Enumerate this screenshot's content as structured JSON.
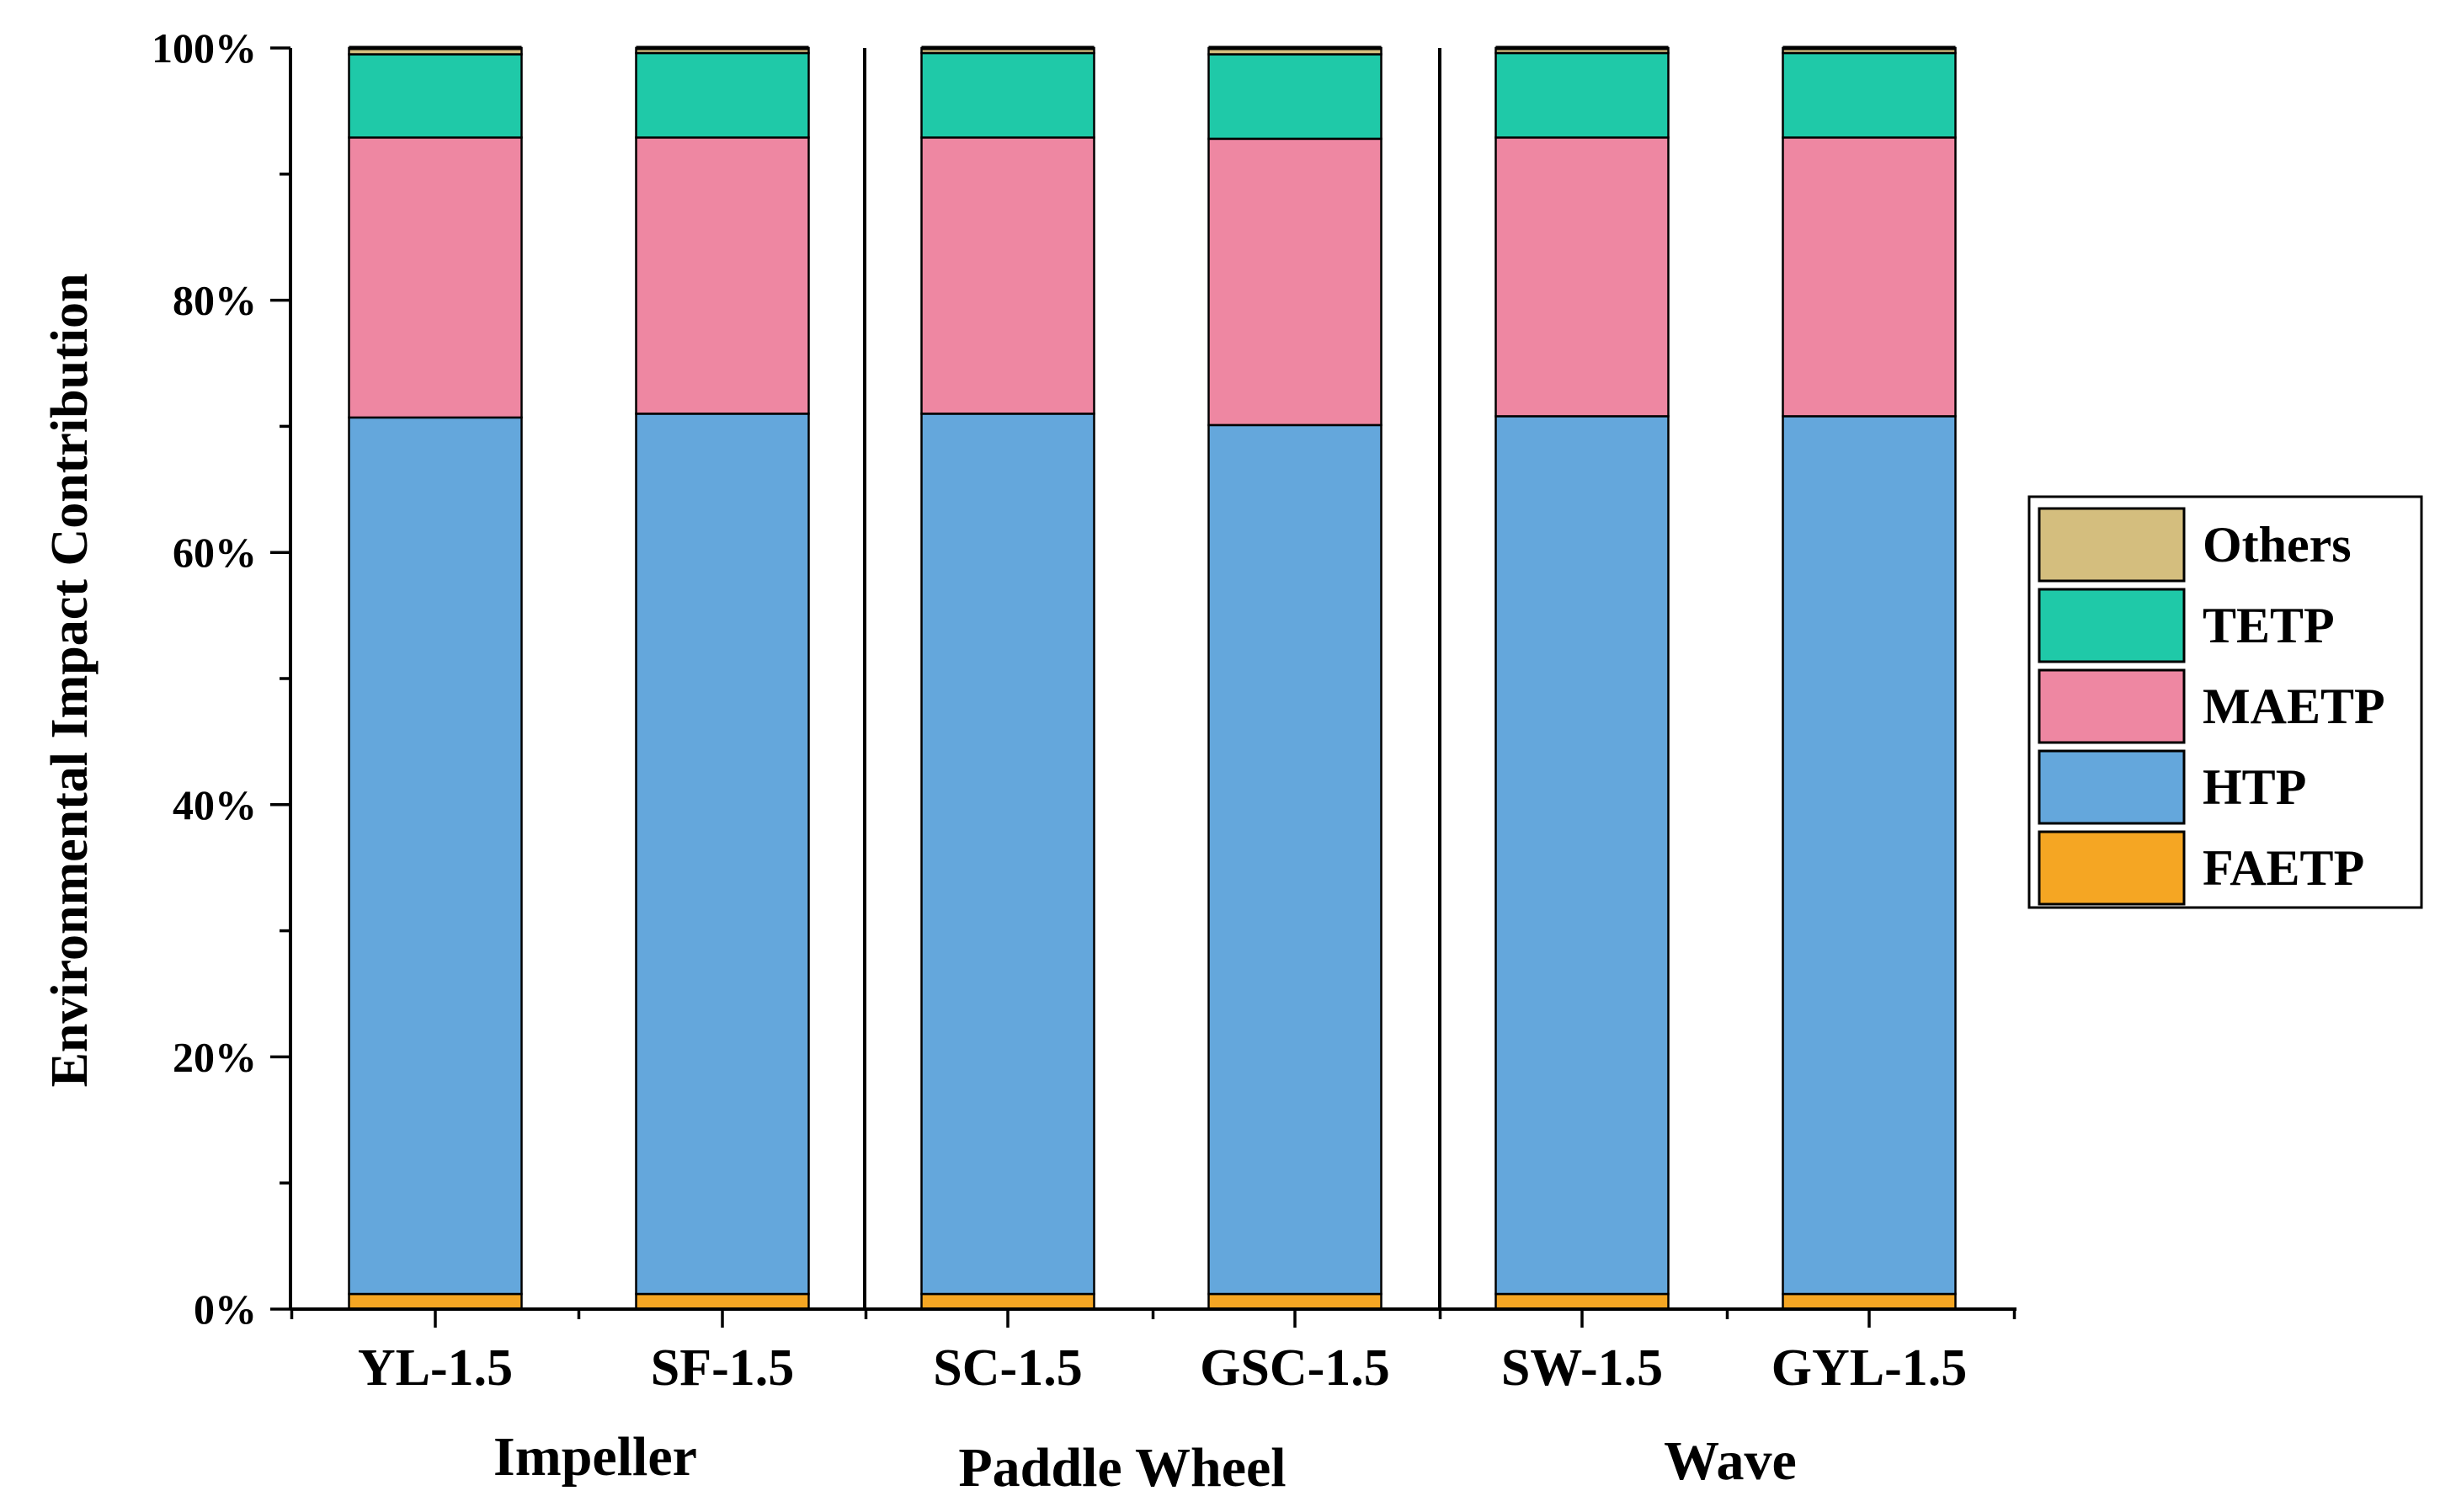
{
  "chart_data": {
    "type": "bar",
    "stacked": true,
    "percent": true,
    "ylabel": "Environmental Impact Contribution",
    "ylim": [
      0,
      100
    ],
    "yticks": [
      "0%",
      "20%",
      "40%",
      "60%",
      "80%",
      "100%"
    ],
    "categories": [
      "YL-1.5",
      "SF-1.5",
      "SC-1.5",
      "GSC-1.5",
      "SW-1.5",
      "GYL-1.5"
    ],
    "groups": [
      {
        "label": "Impeller",
        "categories": [
          "YL-1.5",
          "SF-1.5"
        ]
      },
      {
        "label": "Paddle Wheel",
        "categories": [
          "SC-1.5",
          "GSC-1.5"
        ]
      },
      {
        "label": "Wave",
        "categories": [
          "SW-1.5",
          "GYL-1.5"
        ]
      }
    ],
    "series": [
      {
        "name": "FAETP",
        "color": "#F5A623",
        "values": [
          1.2,
          1.2,
          1.2,
          1.2,
          1.2,
          1.2
        ]
      },
      {
        "name": "HTP",
        "color": "#64A7DC",
        "values": [
          69.5,
          69.8,
          69.8,
          68.9,
          69.6,
          69.6
        ]
      },
      {
        "name": "MAETP",
        "color": "#EE87A2",
        "values": [
          22.2,
          21.9,
          21.9,
          22.7,
          22.1,
          22.1
        ]
      },
      {
        "name": "TETP",
        "color": "#1FC9A8",
        "values": [
          6.6,
          6.7,
          6.7,
          6.7,
          6.7,
          6.7
        ]
      },
      {
        "name": "Others",
        "color": "#D4BE7E",
        "values": [
          0.5,
          0.4,
          0.4,
          0.5,
          0.4,
          0.4
        ]
      }
    ],
    "legend_order": [
      "Others",
      "TETP",
      "MAETP",
      "HTP",
      "FAETP"
    ],
    "legend_position": "right"
  }
}
